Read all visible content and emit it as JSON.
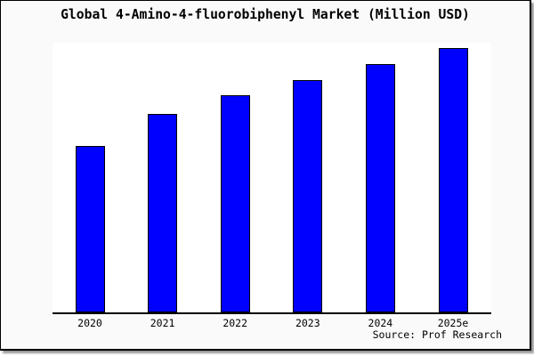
{
  "header": {
    "title": "Global 4-Amino-4-fluorobiphenyl Market (Million USD)"
  },
  "footer": {
    "source": "Source: Prof Research"
  },
  "colors": {
    "bar_fill": "#0000ff",
    "bar_border": "#000000",
    "widget_background": "#fafafa",
    "plot_background": "#ffffff",
    "axis": "#000000",
    "frame": "#000000",
    "shadow": "#999999"
  },
  "chart_data": {
    "type": "bar",
    "title": "Global 4-Amino-4-fluorobiphenyl Market (Million USD)",
    "categories": [
      "2020",
      "2021",
      "2022",
      "2023",
      "2024",
      "2025e"
    ],
    "values": [
      63,
      75,
      82,
      88,
      94,
      100
    ],
    "xlabel": "",
    "ylabel": "",
    "ylim": [
      0,
      102
    ],
    "grid": false,
    "legend": false,
    "y_axis_labels_visible": false,
    "bar_color": "#0000ff",
    "source_text": "Source: Prof Research"
  }
}
